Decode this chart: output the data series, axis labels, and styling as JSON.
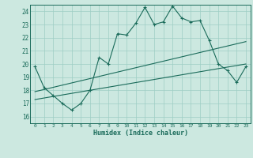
{
  "title": "",
  "xlabel": "Humidex (Indice chaleur)",
  "bg_color": "#cce8e0",
  "grid_color": "#9ecec4",
  "line_color": "#1a6b5a",
  "xlim": [
    -0.5,
    23.5
  ],
  "ylim": [
    15.5,
    24.5
  ],
  "xticks": [
    0,
    1,
    2,
    3,
    4,
    5,
    6,
    7,
    8,
    9,
    10,
    11,
    12,
    13,
    14,
    15,
    16,
    17,
    18,
    19,
    20,
    21,
    22,
    23
  ],
  "yticks": [
    16,
    17,
    18,
    19,
    20,
    21,
    22,
    23,
    24
  ],
  "series1_x": [
    0,
    1,
    2,
    3,
    4,
    5,
    6,
    7,
    8,
    9,
    10,
    11,
    12,
    13,
    14,
    15,
    16,
    17,
    18,
    19,
    20,
    21,
    22,
    23
  ],
  "series1_y": [
    19.8,
    18.2,
    17.6,
    17.0,
    16.5,
    17.0,
    18.0,
    20.5,
    20.0,
    22.3,
    22.2,
    23.1,
    24.3,
    23.0,
    23.2,
    24.4,
    23.5,
    23.2,
    23.3,
    21.8,
    20.0,
    19.5,
    18.6,
    19.8
  ],
  "series2_x": [
    0,
    23
  ],
  "series2_y": [
    17.9,
    21.7
  ],
  "series3_x": [
    0,
    23
  ],
  "series3_y": [
    17.3,
    20.0
  ]
}
